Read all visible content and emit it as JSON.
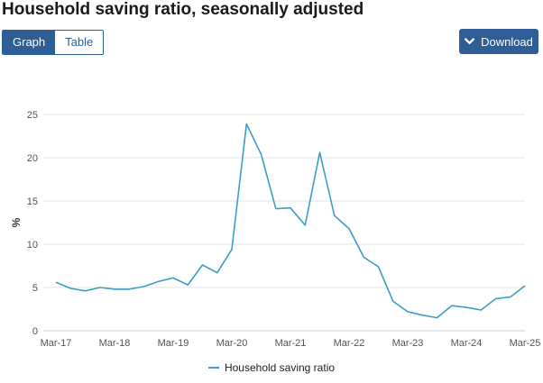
{
  "header": {
    "title": "Household saving ratio, seasonally adjusted"
  },
  "toggle": {
    "graph_label": "Graph",
    "table_label": "Table",
    "active": "graph"
  },
  "download": {
    "label": "Download",
    "icon": "chevron-down-icon"
  },
  "colors": {
    "accent": "#2f5d95",
    "series": "#3d9dc8",
    "grid": "#e3e3e3"
  },
  "chart_data": {
    "type": "line",
    "title": "",
    "xlabel": "",
    "ylabel": "%",
    "ylim": [
      0,
      25
    ],
    "yticks": [
      0,
      5,
      10,
      15,
      20,
      25
    ],
    "grid": "horizontal",
    "legend": "bottom-center",
    "x": [
      "Mar-17",
      "Jun-17",
      "Sep-17",
      "Dec-17",
      "Mar-18",
      "Jun-18",
      "Sep-18",
      "Dec-18",
      "Mar-19",
      "Jun-19",
      "Sep-19",
      "Dec-19",
      "Mar-20",
      "Jun-20",
      "Sep-20",
      "Dec-20",
      "Mar-21",
      "Jun-21",
      "Sep-21",
      "Dec-21",
      "Mar-22",
      "Jun-22",
      "Sep-22",
      "Dec-22",
      "Mar-23",
      "Jun-23",
      "Sep-23",
      "Dec-23",
      "Mar-24",
      "Jun-24",
      "Sep-24",
      "Dec-24",
      "Mar-25"
    ],
    "xticks": [
      "Mar-17",
      "Mar-18",
      "Mar-19",
      "Mar-20",
      "Mar-21",
      "Mar-22",
      "Mar-23",
      "Mar-24",
      "Mar-25"
    ],
    "series": [
      {
        "name": "Household saving ratio",
        "values": [
          5.6,
          4.9,
          4.6,
          5.0,
          4.8,
          4.8,
          5.1,
          5.7,
          6.1,
          5.3,
          7.6,
          6.7,
          9.4,
          23.9,
          20.4,
          14.1,
          14.2,
          12.2,
          20.6,
          13.3,
          11.8,
          8.5,
          7.4,
          3.4,
          2.2,
          1.8,
          1.5,
          2.9,
          2.7,
          2.4,
          3.7,
          3.9,
          5.2
        ]
      }
    ]
  }
}
